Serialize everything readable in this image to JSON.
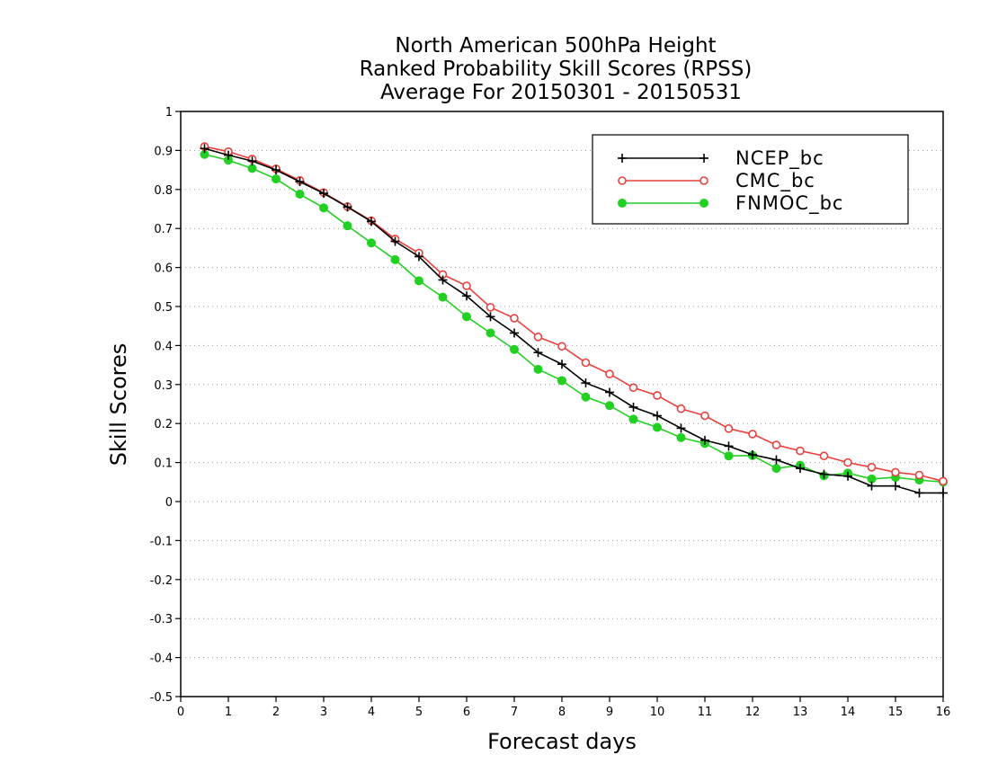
{
  "chart_data": {
    "type": "line",
    "title": [
      "North American 500hPa Height",
      "Ranked Probability Skill Scores (RPSS)",
      "Average For 20150301 - 20150531"
    ],
    "xlabel": "Forecast days",
    "ylabel": "Skill Scores",
    "xlim": [
      0,
      16
    ],
    "ylim": [
      -0.5,
      1
    ],
    "x_ticks": [
      0,
      1,
      2,
      3,
      4,
      5,
      6,
      7,
      8,
      9,
      10,
      11,
      12,
      13,
      14,
      15,
      16
    ],
    "y_ticks": [
      1,
      0.9,
      0.8,
      0.7,
      0.6,
      0.5,
      0.4,
      0.3,
      0.2,
      0.1,
      0,
      -0.1,
      -0.2,
      -0.3,
      -0.4,
      -0.5
    ],
    "grid": "horizontal-dotted",
    "legend_position": "top-right",
    "x": [
      0.5,
      1,
      1.5,
      2,
      2.5,
      3,
      3.5,
      4,
      4.5,
      5,
      5.5,
      6,
      6.5,
      7,
      7.5,
      8,
      8.5,
      9,
      9.5,
      10,
      10.5,
      11,
      11.5,
      12,
      12.5,
      13,
      13.5,
      14,
      14.5,
      15,
      15.5,
      16
    ],
    "series": [
      {
        "name": "NCEP_bc",
        "color": "#000000",
        "marker": "plus",
        "values": [
          0.905,
          0.888,
          0.873,
          0.85,
          0.82,
          0.79,
          0.755,
          0.718,
          0.667,
          0.628,
          0.568,
          0.527,
          0.474,
          0.432,
          0.382,
          0.352,
          0.304,
          0.28,
          0.242,
          0.22,
          0.188,
          0.157,
          0.142,
          0.12,
          0.107,
          0.085,
          0.07,
          0.065,
          0.04,
          0.04,
          0.022,
          0.022
        ]
      },
      {
        "name": "CMC_bc",
        "color": "#e8403c",
        "marker": "open-circle",
        "values": [
          0.91,
          0.897,
          0.878,
          0.853,
          0.823,
          0.792,
          0.756,
          0.72,
          0.673,
          0.637,
          0.582,
          0.553,
          0.498,
          0.47,
          0.422,
          0.398,
          0.356,
          0.327,
          0.292,
          0.272,
          0.238,
          0.22,
          0.187,
          0.173,
          0.145,
          0.13,
          0.117,
          0.1,
          0.088,
          0.075,
          0.068,
          0.052
        ]
      },
      {
        "name": "FNMOC_bc",
        "color": "#22d022",
        "marker": "filled-circle",
        "values": [
          0.89,
          0.875,
          0.854,
          0.827,
          0.788,
          0.753,
          0.707,
          0.663,
          0.62,
          0.566,
          0.524,
          0.474,
          0.432,
          0.39,
          0.339,
          0.31,
          0.268,
          0.246,
          0.211,
          0.19,
          0.164,
          0.149,
          0.117,
          0.118,
          0.085,
          0.093,
          0.066,
          0.073,
          0.058,
          0.062,
          0.055,
          0.05
        ]
      }
    ]
  }
}
